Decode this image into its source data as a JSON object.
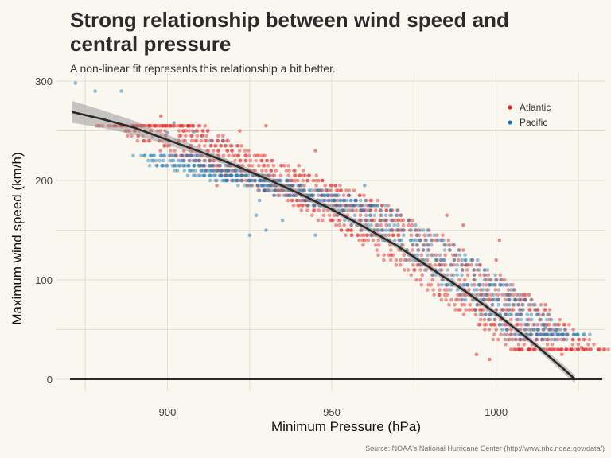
{
  "chart_data": {
    "type": "scatter",
    "title": "Strong relationship between wind speed and central pressure",
    "subtitle": "A non-linear fit represents this relationship a bit better.",
    "caption": "Source: NOAA's National Hurricane Center (http://www.nhc.noaa.gov/data/)",
    "xlabel": "Minimum Pressure (hPa)",
    "ylabel": "Maximum wind speed (km/h)",
    "xlim": [
      866,
      1033
    ],
    "ylim": [
      -12,
      308
    ],
    "xticks": [
      900,
      950,
      1000
    ],
    "yticks": [
      0,
      100,
      200,
      300
    ],
    "grid": true,
    "legend_position": "top-right",
    "series": [
      {
        "name": "Atlantic",
        "color": "#e41a1c",
        "band_points": [
          [
            892,
            256
          ],
          [
            897,
            256
          ],
          [
            902,
            245
          ],
          [
            908,
            235
          ],
          [
            915,
            225
          ],
          [
            922,
            215
          ],
          [
            930,
            205
          ],
          [
            938,
            195
          ],
          [
            945,
            185
          ],
          [
            952,
            175
          ],
          [
            958,
            165
          ],
          [
            965,
            150
          ],
          [
            972,
            140
          ],
          [
            980,
            120
          ],
          [
            988,
            105
          ],
          [
            995,
            85
          ],
          [
            1000,
            75
          ],
          [
            1006,
            60
          ],
          [
            1012,
            45
          ],
          [
            1018,
            32
          ],
          [
            1022,
            30
          ]
        ],
        "band_spread_x": 14,
        "scattered_points": [
          [
            898,
            265
          ],
          [
            905,
            230
          ],
          [
            922,
            250
          ],
          [
            930,
            255
          ],
          [
            915,
            195
          ],
          [
            935,
            190
          ],
          [
            942,
            180
          ],
          [
            950,
            160
          ],
          [
            955,
            150
          ],
          [
            960,
            140
          ],
          [
            968,
            125
          ],
          [
            975,
            110
          ],
          [
            985,
            95
          ],
          [
            995,
            70
          ],
          [
            1005,
            40
          ],
          [
            1010,
            30
          ],
          [
            1020,
            25
          ],
          [
            1000,
            100
          ],
          [
            990,
            130
          ],
          [
            1000,
            120
          ],
          [
            994,
            25
          ],
          [
            998,
            20
          ],
          [
            1026,
            32
          ],
          [
            962,
            175
          ],
          [
            968,
            170
          ],
          [
            945,
            230
          ],
          [
            940,
            215
          ],
          [
            985,
            165
          ],
          [
            990,
            155
          ],
          [
            1001,
            140
          ],
          [
            1010,
            85
          ],
          [
            1015,
            75
          ]
        ]
      },
      {
        "name": "Pacific",
        "color": "#1f78b4",
        "band_points": [
          [
            900,
            225
          ],
          [
            905,
            215
          ],
          [
            912,
            212
          ],
          [
            918,
            205
          ],
          [
            925,
            200
          ],
          [
            932,
            195
          ],
          [
            940,
            188
          ],
          [
            948,
            182
          ],
          [
            955,
            175
          ],
          [
            962,
            165
          ],
          [
            970,
            148
          ],
          [
            978,
            135
          ],
          [
            985,
            118
          ],
          [
            992,
            100
          ],
          [
            998,
            85
          ],
          [
            1004,
            70
          ],
          [
            1009,
            55
          ],
          [
            1014,
            42
          ],
          [
            1021,
            48
          ]
        ],
        "band_spread_x": 10,
        "scattered_points": [
          [
            872,
            298
          ],
          [
            878,
            290
          ],
          [
            886,
            290
          ],
          [
            900,
            248
          ],
          [
            902,
            258
          ],
          [
            908,
            249
          ],
          [
            913,
            240
          ],
          [
            917,
            240
          ],
          [
            925,
            145
          ],
          [
            927,
            165
          ],
          [
            930,
            150
          ],
          [
            928,
            180
          ],
          [
            935,
            160
          ],
          [
            945,
            145
          ],
          [
            960,
            195
          ],
          [
            1018,
            48
          ],
          [
            1015,
            52
          ]
        ]
      }
    ],
    "fit": {
      "name": "non-linear fit",
      "color": "#2b2b2b",
      "points": [
        [
          871,
          269
        ],
        [
          880,
          262
        ],
        [
          890,
          253
        ],
        [
          900,
          241
        ],
        [
          910,
          229
        ],
        [
          920,
          216
        ],
        [
          930,
          202
        ],
        [
          940,
          187
        ],
        [
          950,
          171
        ],
        [
          960,
          153
        ],
        [
          970,
          134
        ],
        [
          980,
          112
        ],
        [
          990,
          90
        ],
        [
          1000,
          66
        ],
        [
          1010,
          40
        ],
        [
          1020,
          12
        ],
        [
          1024,
          0
        ]
      ],
      "ci_width": [
        11,
        9,
        7,
        5,
        4,
        3,
        3,
        3,
        3,
        3,
        3,
        3,
        3,
        3,
        3,
        4,
        4
      ]
    }
  }
}
